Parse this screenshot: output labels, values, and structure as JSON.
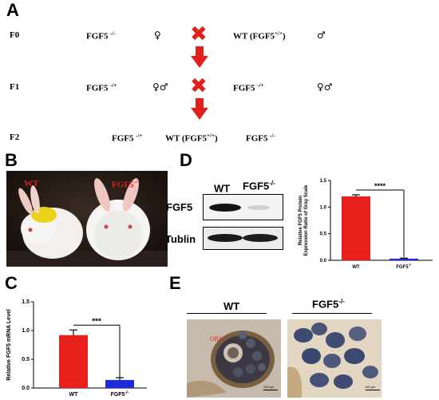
{
  "figure": {
    "panel_a": {
      "letter": "A",
      "rows": [
        {
          "gen": "F0",
          "left": {
            "label": "FGF5",
            "sup": "-/-",
            "sex": "♀"
          },
          "right": {
            "label": "WT (FGF5",
            "sup": "+/+",
            "suffix": ")",
            "sex": "♂"
          }
        },
        {
          "gen": "F1",
          "left": {
            "label": "FGF5",
            "sup": "-/+",
            "sex": "♀♂"
          },
          "right": {
            "label": "FGF5",
            "sup": "-/+",
            "suffix": "",
            "sex": "♀♂"
          }
        }
      ],
      "f2": {
        "gen": "F2",
        "items": [
          {
            "label": "FGF5",
            "sup": "-/+",
            "suffix": ""
          },
          {
            "label": "WT (FGF5",
            "sup": "+/+",
            "suffix": ")"
          },
          {
            "label": "FGF5",
            "sup": "-/-",
            "suffix": ""
          }
        ]
      },
      "cross_symbol": "✖"
    },
    "panel_b": {
      "letter": "B",
      "wt_label": "WT",
      "ko_label": "FGF5",
      "ko_sup": "-/-"
    },
    "panel_c": {
      "letter": "C",
      "chart_data": {
        "type": "bar",
        "categories": [
          "WT",
          "FGF5"
        ],
        "category_sups": [
          "",
          "-/-"
        ],
        "values": [
          0.92,
          0.14
        ],
        "errors": [
          0.09,
          0.04
        ],
        "colors": [
          "#e8201b",
          "#1d2bd8"
        ],
        "ylabel": "Relative FGF5 mRNA Level",
        "yticks": [
          "0.0",
          "0.5",
          "1.0",
          "1.5"
        ],
        "ylim": [
          0,
          1.5
        ],
        "significance": "***"
      }
    },
    "panel_d": {
      "letter": "D",
      "blot": {
        "col_labels": [
          {
            "label": "WT",
            "sup": ""
          },
          {
            "label": "FGF5",
            "sup": "-/-"
          }
        ],
        "row_labels": [
          "FGF5",
          "Tublin"
        ]
      },
      "chart_data": {
        "type": "bar",
        "categories": [
          "WT",
          "FGF5"
        ],
        "category_sups": [
          "",
          "-/-"
        ],
        "values": [
          1.2,
          0.03
        ],
        "errors": [
          0.03,
          0.01
        ],
        "colors": [
          "#e8201b",
          "#1d2bd8"
        ],
        "ylabel_lines": [
          "Relative FGF5 Protein",
          "Expression Ratio of Gray Scale"
        ],
        "yticks": [
          "0.0",
          "0.5",
          "1.0",
          "1.5"
        ],
        "ylim": [
          0,
          1.5
        ],
        "significance": "****"
      }
    },
    "panel_e": {
      "letter": "E",
      "left_label": {
        "label": "WT",
        "sup": ""
      },
      "right_label": {
        "label": "FGF5",
        "sup": "-/-"
      },
      "ors_label": "ORS",
      "scale_text": "100 μm"
    }
  }
}
